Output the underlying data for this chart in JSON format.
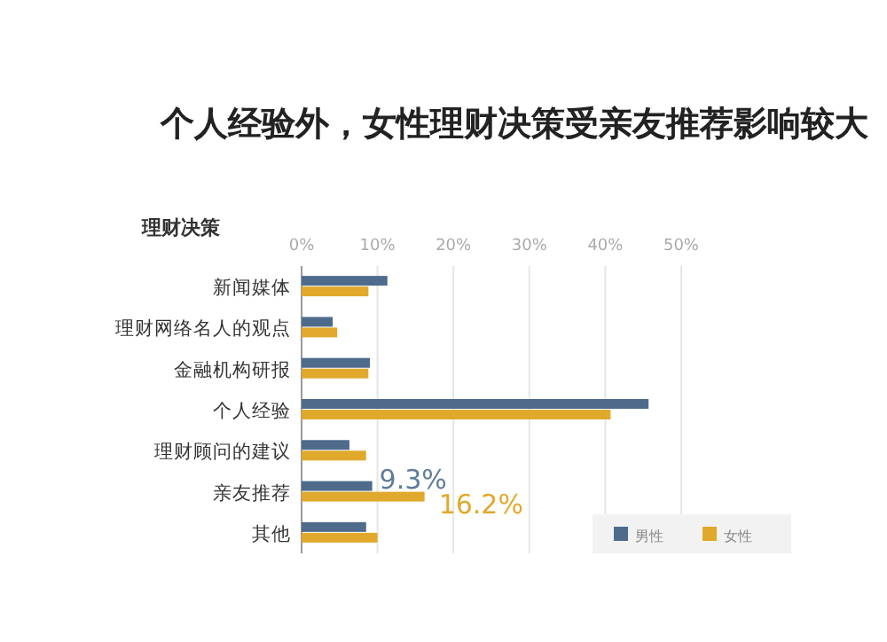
{
  "chart_data": {
    "type": "bar",
    "orientation": "horizontal",
    "title": "个人经验外，女性理财决策受亲友推荐影响较大",
    "ylabel": "理财决策",
    "categories": [
      "新闻媒体",
      "理财网络名人的观点",
      "金融机构研报",
      "个人经验",
      "理财顾问的建议",
      "亲友推荐",
      "其他"
    ],
    "series": [
      {
        "name": "男性",
        "color": "#4e6b8c",
        "values": [
          11.3,
          4.1,
          9.0,
          45.7,
          6.3,
          9.3,
          8.5
        ],
        "value_labels": [
          null,
          null,
          null,
          null,
          null,
          "9.3%",
          null
        ]
      },
      {
        "name": "女性",
        "color": "#e0a92c",
        "values": [
          8.8,
          4.7,
          8.8,
          40.7,
          8.5,
          16.2,
          10.0
        ],
        "value_labels": [
          null,
          null,
          null,
          null,
          null,
          "16.2%",
          null
        ]
      }
    ],
    "xlim": [
      0,
      50
    ],
    "xticks": [
      {
        "value": 0,
        "label": "0%"
      },
      {
        "value": 10,
        "label": "10%"
      },
      {
        "value": 20,
        "label": "20%"
      },
      {
        "value": 30,
        "label": "30%"
      },
      {
        "value": 40,
        "label": "40%"
      },
      {
        "value": 50,
        "label": "50%"
      }
    ],
    "grid": "x",
    "legend": "bottom right"
  }
}
